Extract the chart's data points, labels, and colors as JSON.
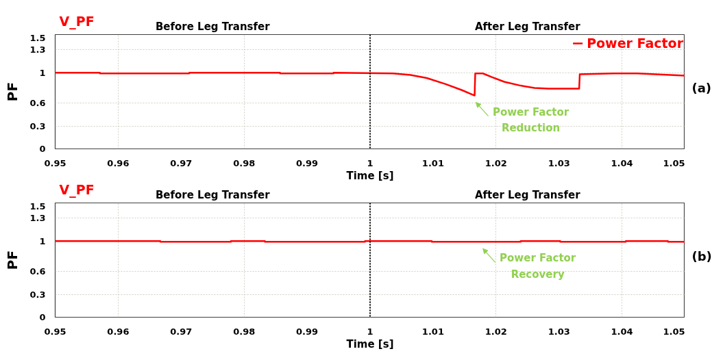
{
  "chart_data": [
    {
      "type": "line",
      "title": "V_PF",
      "xlabel": "Time [s]",
      "ylabel": "PF",
      "xlim": [
        0.95,
        1.05
      ],
      "xticks": [
        0.95,
        0.96,
        0.97,
        0.98,
        0.99,
        1,
        1.01,
        1.02,
        1.03,
        1.04,
        1.05
      ],
      "ylim": [
        0,
        1.5
      ],
      "yticks": [
        0,
        0.3,
        0.6,
        1,
        1.3,
        1.5
      ],
      "grid": true,
      "legend": "top right",
      "ref_lines": [
        {
          "axis": "x",
          "value": 1,
          "color": "#000000",
          "line_style": "dotted"
        }
      ],
      "annotations": [
        "Before Leg Transfer",
        "After Leg Transfer",
        {
          "text": "Power Factor\nReduction",
          "x": 1.0166,
          "y": 0.7
        },
        "(a)"
      ],
      "series": [
        {
          "name": "Power Factor",
          "color": "#ff0000",
          "x": [
            0.95,
            0.9571,
            0.9571,
            0.9713,
            0.9713,
            0.9857,
            0.9857,
            0.9942,
            0.9942,
            1.0036,
            1.0064,
            1.009,
            1.012,
            1.0146,
            1.0166,
            1.0167,
            1.0179,
            1.0194,
            1.0213,
            1.0239,
            1.0261,
            1.0283,
            1.0332,
            1.0333,
            1.0387,
            1.0424,
            1.05
          ],
          "values": [
            1.0,
            1.0,
            0.99,
            0.99,
            1.0,
            1.0,
            0.99,
            0.99,
            1.0,
            0.99,
            0.97,
            0.93,
            0.85,
            0.77,
            0.7,
            0.99,
            0.99,
            0.94,
            0.88,
            0.83,
            0.8,
            0.79,
            0.79,
            0.98,
            0.99,
            0.99,
            0.96
          ]
        }
      ]
    },
    {
      "type": "line",
      "title": "V_PF",
      "xlabel": "Time [s]",
      "ylabel": "PF",
      "xlim": [
        0.95,
        1.05
      ],
      "xticks": [
        0.95,
        0.96,
        0.97,
        0.98,
        0.99,
        1,
        1.01,
        1.02,
        1.03,
        1.04,
        1.05
      ],
      "ylim": [
        0,
        1.5
      ],
      "yticks": [
        0,
        0.3,
        0.6,
        1,
        1.3,
        1.5
      ],
      "grid": true,
      "ref_lines": [
        {
          "axis": "x",
          "value": 1,
          "color": "#000000",
          "line_style": "dotted"
        }
      ],
      "annotations": [
        "Before Leg Transfer",
        "After Leg Transfer",
        {
          "text": "Power Factor\nRecovery",
          "x": 1.0177,
          "y": 0.99
        },
        "(b)"
      ],
      "series": [
        {
          "color": "#ff0000",
          "x": [
            0.95,
            0.9667,
            0.9667,
            0.9779,
            0.9779,
            0.9833,
            0.9833,
            0.9992,
            0.9992,
            1.0098,
            1.0098,
            1.0239,
            1.0239,
            1.0302,
            1.0302,
            1.0406,
            1.0406,
            1.0473,
            1.0473,
            1.05
          ],
          "values": [
            1.0,
            1.0,
            0.99,
            0.99,
            1.0,
            1.0,
            0.99,
            0.99,
            1.0,
            1.0,
            0.99,
            0.99,
            1.0,
            1.0,
            0.99,
            0.99,
            1.0,
            1.0,
            0.99,
            0.99
          ]
        }
      ]
    }
  ]
}
